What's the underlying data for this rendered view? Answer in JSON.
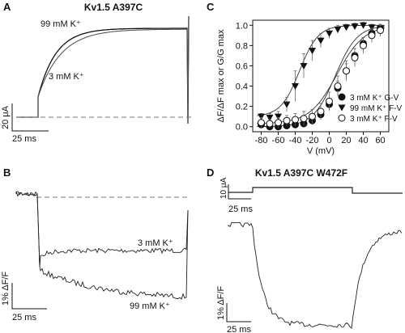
{
  "panels": {
    "A": {
      "letter": "A",
      "title": "Kv1.5 A397C",
      "labels": {
        "high_k": "99 mM K⁺",
        "low_k": "3 mM K⁺"
      },
      "scale": {
        "current": "20 μA",
        "time": "25 ms"
      }
    },
    "B": {
      "letter": "B",
      "labels": {
        "low_k": "3 mM K⁺",
        "high_k": "99 mM K⁺"
      },
      "scale": {
        "fluor": "1% ΔF/F",
        "time": "25 ms"
      }
    },
    "C": {
      "letter": "C"
    },
    "D": {
      "letter": "D",
      "title": "Kv1.5 A397C W472F",
      "scale": {
        "current": "10 μA",
        "time": "25 ms",
        "fluor": "1% ΔF/F",
        "time2": "25 ms"
      }
    }
  },
  "chart_data": [
    {
      "panel": "A",
      "type": "line",
      "series": [
        {
          "name": "99 mM K⁺",
          "description": "current rises quickly to a steady level"
        },
        {
          "name": "3 mM K⁺",
          "description": "current rises slightly more slowly to the same level"
        }
      ],
      "baseline": "dashed"
    },
    {
      "panel": "B",
      "type": "line",
      "series": [
        {
          "name": "3 mM K⁺",
          "description": "fluorescence drops after depolarization then stays flat"
        },
        {
          "name": "99 mM K⁺",
          "description": "fluorescence drops and continues to decline slowly"
        }
      ],
      "baseline": "dashed"
    },
    {
      "panel": "C",
      "type": "scatter",
      "xlabel": "V (mV)",
      "ylabel": "ΔF/ΔF max or G/G max",
      "xlim": [
        -90,
        70
      ],
      "ylim": [
        -0.05,
        1.05
      ],
      "xticks": [
        -80,
        -60,
        -40,
        -20,
        0,
        20,
        40,
        60
      ],
      "yticks": [
        0.0,
        0.2,
        0.4,
        0.6,
        0.8,
        1.0
      ],
      "legend_position": "lower-right",
      "series": [
        {
          "name": "3 mM K⁺ G-V",
          "marker": "filled-circle",
          "x": [
            -80,
            -70,
            -60,
            -50,
            -40,
            -30,
            -20,
            -10,
            0,
            10,
            20,
            30,
            40,
            50,
            60
          ],
          "y": [
            0.02,
            0.0,
            0.0,
            0.01,
            0.02,
            0.03,
            0.06,
            0.12,
            0.22,
            0.38,
            0.55,
            0.7,
            0.82,
            0.92,
            0.97
          ],
          "err": [
            0.03,
            0.02,
            0.02,
            0.02,
            0.03,
            0.03,
            0.04,
            0.05,
            0.06,
            0.07,
            0.07,
            0.07,
            0.06,
            0.04,
            0.03
          ]
        },
        {
          "name": "99 mM K⁺ F-V",
          "marker": "filled-triangle-down",
          "x": [
            -80,
            -70,
            -60,
            -50,
            -40,
            -30,
            -20,
            -10,
            0,
            10,
            20,
            30,
            40,
            50,
            60
          ],
          "y": [
            0.1,
            0.09,
            0.1,
            0.22,
            0.4,
            0.6,
            0.75,
            0.85,
            0.92,
            0.96,
            0.98,
            0.99,
            1.0,
            0.98,
            0.97
          ],
          "err": [
            0.03,
            0.04,
            0.05,
            0.07,
            0.15,
            0.12,
            0.1,
            0.07,
            0.05,
            0.04,
            0.03,
            0.03,
            0.03,
            0.03,
            0.03
          ]
        },
        {
          "name": "3 mM K⁺ F-V",
          "marker": "open-circle",
          "x": [
            -80,
            -70,
            -60,
            -50,
            -40,
            -30,
            -20,
            -10,
            0,
            10,
            20,
            30,
            40,
            50,
            60
          ],
          "y": [
            0.04,
            0.03,
            0.04,
            0.06,
            0.07,
            0.08,
            0.1,
            0.15,
            0.25,
            0.4,
            0.55,
            0.68,
            0.8,
            0.9,
            0.95
          ],
          "err": [
            0.05,
            0.04,
            0.05,
            0.05,
            0.06,
            0.07,
            0.07,
            0.08,
            0.09,
            0.1,
            0.1,
            0.09,
            0.08,
            0.07,
            0.06
          ]
        }
      ]
    },
    {
      "panel": "D",
      "type": "line",
      "series": [
        {
          "name": "current",
          "description": "voltage-clamp current trace, small step"
        },
        {
          "name": "fluorescence",
          "description": "fluorescence drops after depolarization, recovers after repolarization"
        }
      ]
    }
  ]
}
